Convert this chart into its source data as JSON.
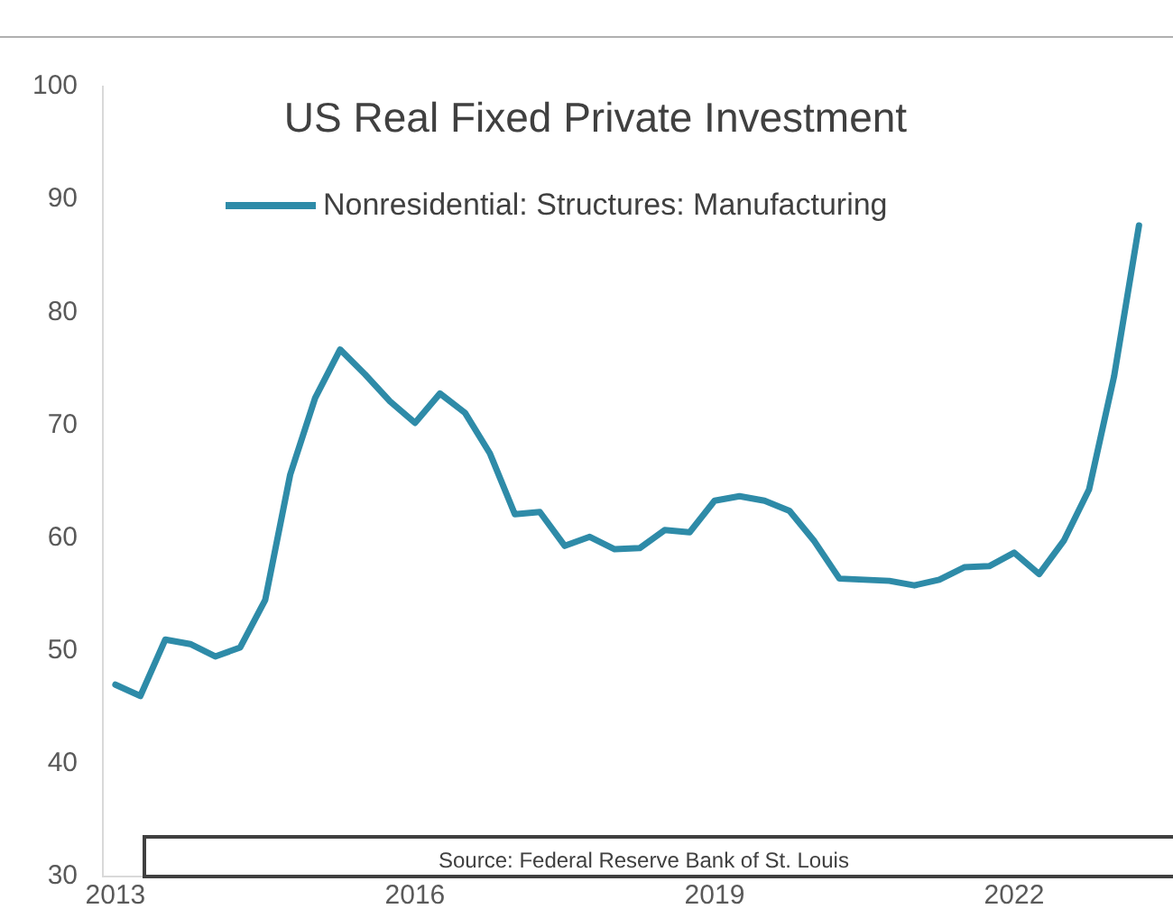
{
  "chart_data": {
    "type": "line",
    "title": "US Real Fixed Private Investment",
    "annotations": [
      "Source: Federal Reserve Bank of St. Louis"
    ],
    "x": [
      2013,
      2013.25,
      2013.5,
      2013.75,
      2014,
      2014.25,
      2014.5,
      2014.75,
      2015,
      2015.25,
      2015.5,
      2015.75,
      2016,
      2016.25,
      2016.5,
      2016.75,
      2017,
      2017.25,
      2017.5,
      2017.75,
      2018,
      2018.25,
      2018.5,
      2018.75,
      2019,
      2019.25,
      2019.5,
      2019.75,
      2020,
      2020.25,
      2020.5,
      2020.75,
      2021,
      2021.25,
      2021.5,
      2021.75,
      2022,
      2022.25,
      2022.5,
      2022.75,
      2023,
      2023.25
    ],
    "series": [
      {
        "name": "Nonresidential: Structures: Manufacturing",
        "color": "#2e8ba8",
        "values": [
          47.0,
          46.0,
          51.0,
          50.6,
          49.5,
          50.3,
          54.5,
          65.6,
          72.4,
          76.7,
          74.5,
          72.1,
          70.2,
          72.8,
          71.1,
          67.5,
          62.1,
          62.3,
          59.3,
          60.1,
          59.0,
          59.1,
          60.7,
          60.5,
          63.3,
          63.7,
          63.3,
          62.4,
          59.7,
          56.4,
          56.3,
          56.2,
          55.8,
          56.3,
          57.4,
          57.5,
          58.7,
          56.8,
          59.8,
          64.3,
          74.3,
          87.7
        ]
      }
    ],
    "xlim": [
      2012.875,
      2023.5
    ],
    "xticks": [
      2013,
      2016,
      2019,
      2022
    ],
    "ylim": [
      30,
      100
    ],
    "yticks": [
      30,
      40,
      50,
      60,
      70,
      80,
      90,
      100
    ],
    "grid": false,
    "legend": "top",
    "marker": "none",
    "line_style": "solid"
  }
}
